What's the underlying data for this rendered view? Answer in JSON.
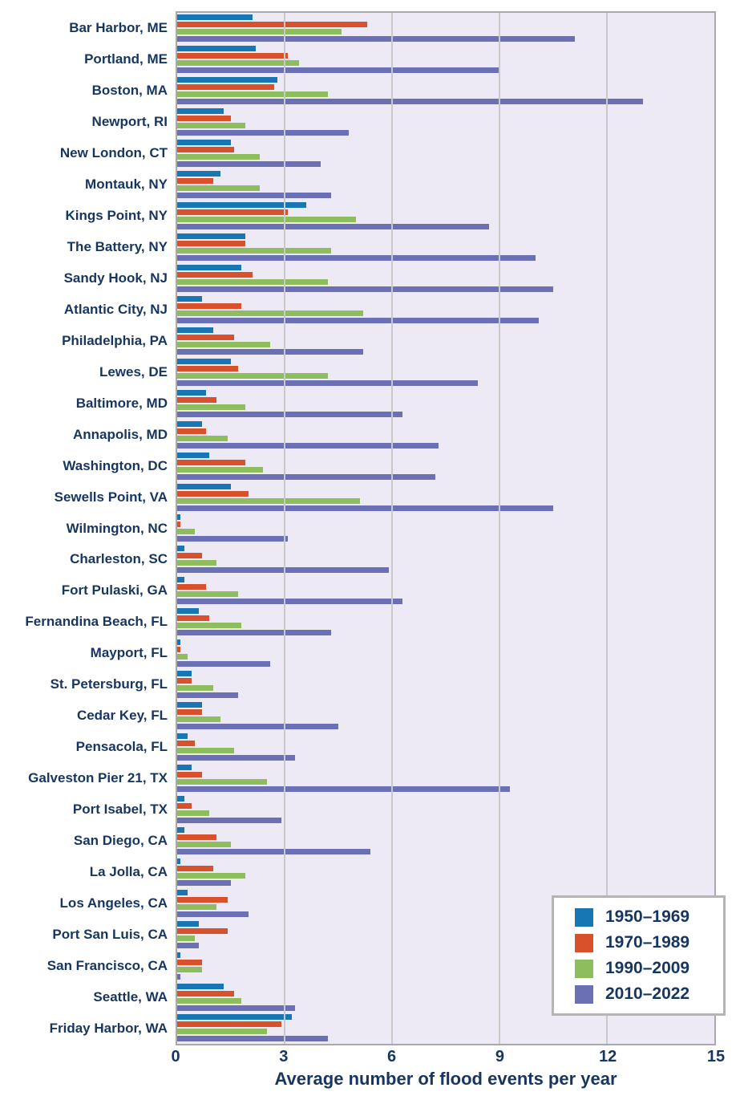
{
  "chart_data": {
    "type": "bar",
    "orientation": "horizontal",
    "xlabel": "Average number of flood events per year",
    "xlim": [
      0,
      15
    ],
    "xticks": [
      "0",
      "3",
      "6",
      "9",
      "12",
      "15"
    ],
    "grid": true,
    "legend_position": "lower right",
    "categories": [
      "Bar Harbor, ME",
      "Portland, ME",
      "Boston, MA",
      "Newport, RI",
      "New London, CT",
      "Montauk, NY",
      "Kings Point, NY",
      "The Battery, NY",
      "Sandy Hook, NJ",
      "Atlantic City, NJ",
      "Philadelphia, PA",
      "Lewes, DE",
      "Baltimore, MD",
      "Annapolis, MD",
      "Washington, DC",
      "Sewells Point, VA",
      "Wilmington, NC",
      "Charleston, SC",
      "Fort Pulaski, GA",
      "Fernandina Beach, FL",
      "Mayport, FL",
      "St. Petersburg, FL",
      "Cedar Key, FL",
      "Pensacola, FL",
      "Galveston Pier 21, TX",
      "Port Isabel, TX",
      "San Diego, CA",
      "La Jolla, CA",
      "Los Angeles, CA",
      "Port San Luis, CA",
      "San Francisco, CA",
      "Seattle, WA",
      "Friday Harbor, WA"
    ],
    "series": [
      {
        "name": "1950–1969",
        "color": "#1777b4",
        "values": [
          2.1,
          2.2,
          2.8,
          1.3,
          1.5,
          1.2,
          3.6,
          1.9,
          1.8,
          0.7,
          1.0,
          1.5,
          0.8,
          0.7,
          0.9,
          1.5,
          0.1,
          0.2,
          0.2,
          0.6,
          0.1,
          0.4,
          0.7,
          0.3,
          0.4,
          0.2,
          0.2,
          0.1,
          0.3,
          0.6,
          0.1,
          1.3,
          3.2
        ]
      },
      {
        "name": "1970–1989",
        "color": "#d8512b",
        "values": [
          5.3,
          3.1,
          2.7,
          1.5,
          1.6,
          1.0,
          3.1,
          1.9,
          2.1,
          1.8,
          1.6,
          1.7,
          1.1,
          0.8,
          1.9,
          2.0,
          0.1,
          0.7,
          0.8,
          0.9,
          0.1,
          0.4,
          0.7,
          0.5,
          0.7,
          0.4,
          1.1,
          1.0,
          1.4,
          1.4,
          0.7,
          1.6,
          2.9
        ]
      },
      {
        "name": "1990–2009",
        "color": "#8dbd5c",
        "values": [
          4.6,
          3.4,
          4.2,
          1.9,
          2.3,
          2.3,
          5.0,
          4.3,
          4.2,
          5.2,
          2.6,
          4.2,
          1.9,
          1.4,
          2.4,
          5.1,
          0.5,
          1.1,
          1.7,
          1.8,
          0.3,
          1.0,
          1.2,
          1.6,
          2.5,
          0.9,
          1.5,
          1.9,
          1.1,
          0.5,
          0.7,
          1.8,
          2.5
        ]
      },
      {
        "name": "2010–2022",
        "color": "#6b70b5",
        "values": [
          11.1,
          9.0,
          13.0,
          4.8,
          4.0,
          4.3,
          8.7,
          10.0,
          10.5,
          10.1,
          5.2,
          8.4,
          6.3,
          7.3,
          7.2,
          10.5,
          3.1,
          5.9,
          6.3,
          4.3,
          2.6,
          1.7,
          4.5,
          3.3,
          9.3,
          2.9,
          5.4,
          1.5,
          2.0,
          0.6,
          0.1,
          3.3,
          4.2
        ]
      }
    ]
  },
  "colors": {
    "text": "#17365f",
    "plot_bg": "#edeaf5",
    "gridline": "#c9c9c9",
    "plot_border": "#a9a9a9",
    "legend_border": "#b5b5b5",
    "page_bg": "#ffffff"
  }
}
